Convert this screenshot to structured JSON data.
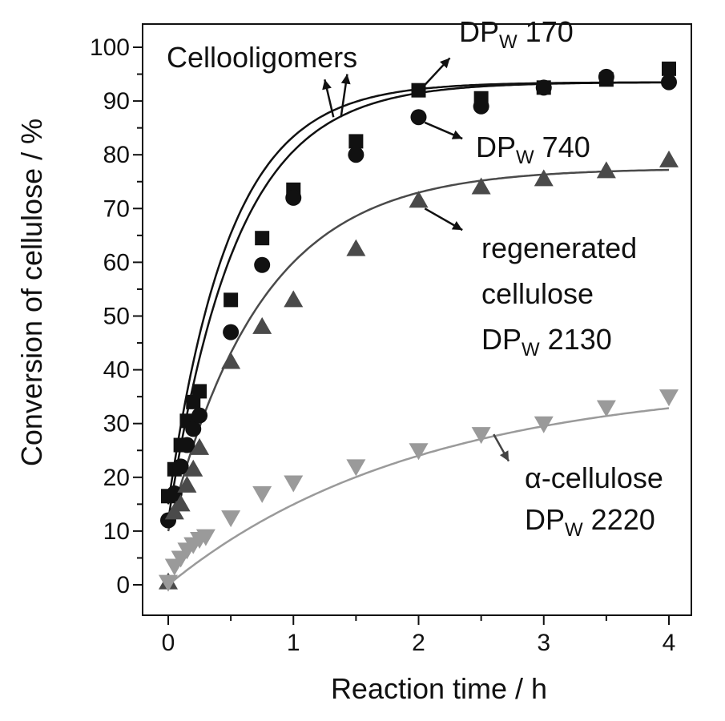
{
  "chart_data": {
    "type": "scatter",
    "xlabel": "Reaction time / h",
    "ylabel": "Conversion of cellulose / %",
    "xlim": [
      -0.2,
      4.2
    ],
    "ylim": [
      -5,
      105
    ],
    "xticks": [
      "0",
      "1",
      "2",
      "3",
      "4"
    ],
    "yticks": [
      "0",
      "10",
      "20",
      "30",
      "40",
      "50",
      "60",
      "70",
      "80",
      "90",
      "100"
    ],
    "grid": false,
    "series": [
      {
        "name": "DPW 170",
        "marker": "square",
        "color": "#111111",
        "x": [
          0,
          0.05,
          0.1,
          0.15,
          0.2,
          0.25,
          0.5,
          0.75,
          1.0,
          1.5,
          2.0,
          2.5,
          3.0,
          3.5,
          4.0
        ],
        "y": [
          16.5,
          21.5,
          26,
          30.5,
          34,
          36,
          53,
          64.5,
          73.5,
          82.5,
          92,
          90.5,
          92.5,
          94,
          96
        ],
        "fit": {
          "a": 93.5,
          "k": 2.05,
          "b": 15
        }
      },
      {
        "name": "DPW 740",
        "marker": "circle",
        "color": "#111111",
        "x": [
          0,
          0.05,
          0.1,
          0.15,
          0.2,
          0.25,
          0.5,
          0.75,
          1.0,
          1.5,
          2.0,
          2.5,
          3.0,
          3.5,
          4.0
        ],
        "y": [
          12,
          17,
          22,
          26,
          29,
          31.5,
          47,
          59.5,
          72,
          80,
          87,
          89,
          92.5,
          94.5,
          93.5
        ],
        "fit": {
          "a": 93.5,
          "k": 1.85,
          "b": 12
        }
      },
      {
        "name": "regenerated cellulose DPW 2130",
        "marker": "triangle-up",
        "color": "#4a4a4a",
        "x": [
          0,
          0.05,
          0.1,
          0.15,
          0.2,
          0.25,
          0.5,
          0.75,
          1.0,
          1.5,
          2.0,
          2.5,
          3.0,
          3.5,
          4.0
        ],
        "y": [
          0.5,
          13.5,
          15,
          18.5,
          21.5,
          25.5,
          41.5,
          48,
          53,
          62.5,
          71.5,
          74,
          75.5,
          77,
          79
        ],
        "fit": {
          "a": 77.5,
          "k": 1.35,
          "b": 10
        }
      },
      {
        "name": "α-cellulose DPW 2220",
        "marker": "triangle-down",
        "color": "#9a9a9a",
        "x": [
          0,
          0.05,
          0.1,
          0.15,
          0.2,
          0.25,
          0.3,
          0.5,
          0.75,
          1.0,
          1.5,
          2.0,
          2.5,
          3.0,
          3.5,
          4.0
        ],
        "y": [
          0.5,
          3.5,
          5,
          6.5,
          7.5,
          8.5,
          9,
          12.5,
          17,
          19,
          22,
          25,
          28,
          30,
          33,
          35
        ],
        "fit": {
          "a": 38,
          "k": 0.5,
          "b": 0
        }
      }
    ],
    "annotations": [
      {
        "id": "cellooligomers",
        "lines": [
          "Cellooligomers"
        ]
      },
      {
        "id": "dp170",
        "lines": [
          "DPW 170"
        ]
      },
      {
        "id": "dp740",
        "lines": [
          "DPW 740"
        ]
      },
      {
        "id": "regen",
        "lines": [
          "regenerated",
          "cellulose",
          "DPW 2130"
        ]
      },
      {
        "id": "alpha",
        "lines": [
          "α-cellulose",
          "DPW 2220"
        ]
      }
    ]
  }
}
